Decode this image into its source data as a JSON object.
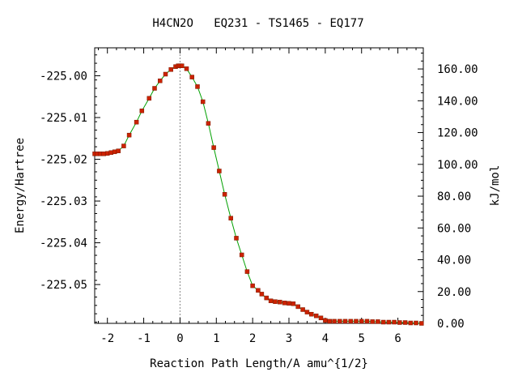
{
  "chart_data": {
    "type": "scatter",
    "title": "H4CN2O   EQ231 - TS1465 - EQ177",
    "xlabel": "Reaction Path Length/A amu^{1/2}",
    "ylabel": "Energy/Hartree",
    "y2label": "kJ/mol",
    "xlim": [
      -2.35,
      6.7
    ],
    "ylim": [
      -225.0593,
      -224.9933
    ],
    "y2lim": [
      0.0,
      173.3
    ],
    "x_ticks": [
      "-2",
      "-1",
      "0",
      "1",
      "2",
      "3",
      "4",
      "5",
      "6"
    ],
    "y_ticks": [
      "-225.00",
      "-225.01",
      "-225.02",
      "-225.03",
      "-225.04",
      "-225.05"
    ],
    "y2_ticks": [
      "0.00",
      "20.00",
      "40.00",
      "60.00",
      "80.00",
      "100.00",
      "120.00",
      "140.00",
      "160.00"
    ],
    "ts_marker_x": 0.0,
    "grid": false,
    "series": [
      {
        "color": "#cc2200",
        "line_color": "#00a000",
        "x": [
          -2.35,
          -2.28,
          -2.2,
          -2.1,
          -2.0,
          -1.9,
          -1.8,
          -1.7,
          -1.55,
          -1.4,
          -1.2,
          -1.05,
          -0.85,
          -0.7,
          -0.55,
          -0.4,
          -0.25,
          -0.12,
          -0.05,
          0.0,
          0.05,
          0.18,
          0.33,
          0.48,
          0.63,
          0.78,
          0.93,
          1.08,
          1.23,
          1.4,
          1.55,
          1.7,
          1.85,
          2.0,
          2.15,
          2.25,
          2.38,
          2.5,
          2.62,
          2.75,
          2.88,
          3.0,
          3.12,
          3.25,
          3.38,
          3.5,
          3.62,
          3.75,
          3.88,
          4.0,
          4.12,
          4.25,
          4.4,
          4.55,
          4.7,
          4.85,
          5.0,
          5.15,
          5.3,
          5.45,
          5.6,
          5.75,
          5.9,
          6.05,
          6.2,
          6.35,
          6.5,
          6.65
        ],
        "y": [
          -225.0187,
          -225.0187,
          -225.0187,
          -225.0187,
          -225.0186,
          -225.0184,
          -225.0182,
          -225.018,
          -225.0168,
          -225.0142,
          -225.0111,
          -225.0084,
          -225.0054,
          -225.003,
          -225.0012,
          -224.9996,
          -224.9985,
          -224.9978,
          -224.9976,
          -224.9976,
          -224.9976,
          -224.9983,
          -225.0003,
          -225.0026,
          -225.0062,
          -225.0114,
          -225.0172,
          -225.0228,
          -225.0284,
          -225.0341,
          -225.0389,
          -225.0429,
          -225.0469,
          -225.0503,
          -225.0514,
          -225.0523,
          -225.0532,
          -225.0539,
          -225.0541,
          -225.0542,
          -225.0544,
          -225.0545,
          -225.0546,
          -225.0553,
          -225.056,
          -225.0566,
          -225.0571,
          -225.0575,
          -225.058,
          -225.0586,
          -225.0588,
          -225.0588,
          -225.0588,
          -225.0588,
          -225.0588,
          -225.0588,
          -225.0588,
          -225.0588,
          -225.0589,
          -225.0589,
          -225.059,
          -225.059,
          -225.059,
          -225.0591,
          -225.0591,
          -225.0592,
          -225.0592,
          -225.0593
        ]
      }
    ]
  }
}
